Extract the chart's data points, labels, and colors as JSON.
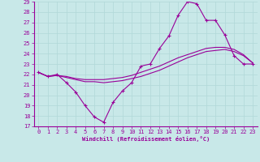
{
  "xlabel": "Windchill (Refroidissement éolien,°C)",
  "background_color": "#c8e8e8",
  "grid_color": "#b0d8d8",
  "line_color": "#990099",
  "xlim": [
    -0.5,
    23.5
  ],
  "ylim": [
    17,
    29
  ],
  "yticks": [
    17,
    18,
    19,
    20,
    21,
    22,
    23,
    24,
    25,
    26,
    27,
    28,
    29
  ],
  "xticks": [
    0,
    1,
    2,
    3,
    4,
    5,
    6,
    7,
    8,
    9,
    10,
    11,
    12,
    13,
    14,
    15,
    16,
    17,
    18,
    19,
    20,
    21,
    22,
    23
  ],
  "series1_x": [
    0,
    1,
    2,
    3,
    4,
    5,
    6,
    7,
    8,
    9,
    10,
    11,
    12,
    13,
    14,
    15,
    16,
    17,
    18,
    19,
    20,
    21,
    22,
    23
  ],
  "series1_y": [
    22.2,
    21.8,
    22.0,
    21.2,
    20.3,
    19.0,
    17.9,
    17.4,
    19.3,
    20.4,
    21.2,
    22.8,
    23.0,
    24.5,
    25.7,
    27.7,
    29.0,
    28.8,
    27.2,
    27.2,
    25.8,
    23.8,
    23.0,
    23.0
  ],
  "series2_x": [
    0,
    1,
    2,
    3,
    4,
    5,
    6,
    7,
    8,
    9,
    10,
    11,
    12,
    13,
    14,
    15,
    16,
    17,
    18,
    19,
    20,
    21,
    22,
    23
  ],
  "series2_y": [
    22.2,
    21.8,
    21.9,
    21.7,
    21.5,
    21.3,
    21.3,
    21.2,
    21.3,
    21.4,
    21.6,
    21.8,
    22.1,
    22.4,
    22.8,
    23.2,
    23.6,
    23.9,
    24.2,
    24.3,
    24.4,
    24.2,
    23.8,
    23.1
  ],
  "series3_x": [
    0,
    1,
    2,
    3,
    4,
    5,
    6,
    7,
    8,
    9,
    10,
    11,
    12,
    13,
    14,
    15,
    16,
    17,
    18,
    19,
    20,
    21,
    22,
    23
  ],
  "series3_y": [
    22.2,
    21.8,
    21.9,
    21.8,
    21.6,
    21.5,
    21.5,
    21.5,
    21.6,
    21.7,
    21.9,
    22.2,
    22.5,
    22.8,
    23.2,
    23.6,
    23.9,
    24.2,
    24.5,
    24.6,
    24.6,
    24.4,
    23.9,
    23.1
  ]
}
